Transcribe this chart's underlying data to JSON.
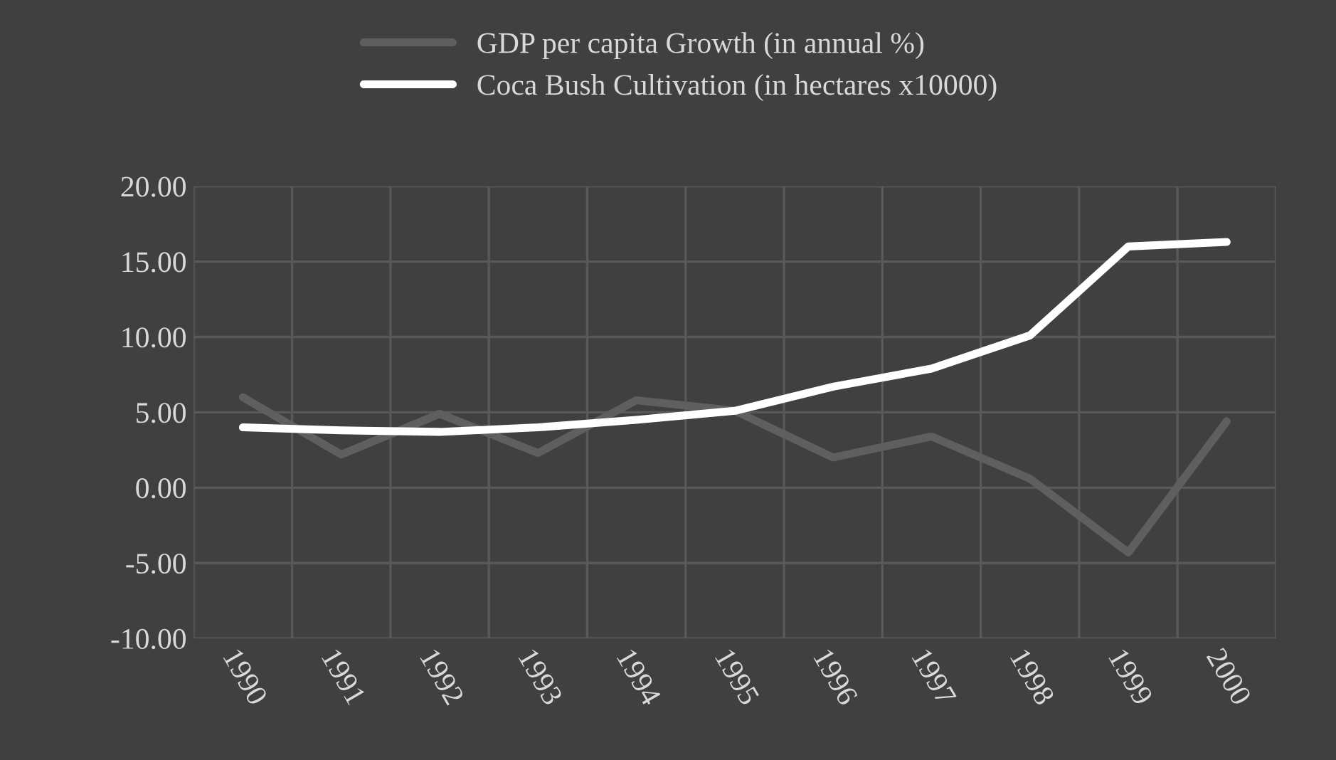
{
  "chart_data": {
    "type": "line",
    "categories": [
      "1990",
      "1991",
      "1992",
      "1993",
      "1994",
      "1995",
      "1996",
      "1997",
      "1998",
      "1999",
      "2000"
    ],
    "series": [
      {
        "name": "GDP per capita Growth (in annual %)",
        "color": "#5f5f5f",
        "values": [
          6.0,
          2.2,
          4.9,
          2.3,
          5.8,
          5.1,
          2.0,
          3.4,
          0.6,
          -4.3,
          4.4
        ]
      },
      {
        "name": "Coca Bush Cultivation (in hectares x10000)",
        "color": "#ffffff",
        "values": [
          4.0,
          3.8,
          3.7,
          4.0,
          4.5,
          5.1,
          6.7,
          7.9,
          10.1,
          16.0,
          16.3
        ]
      }
    ],
    "ylim": [
      -10,
      20
    ],
    "yticks": [
      {
        "value": -10,
        "label": "-10.00"
      },
      {
        "value": -5,
        "label": "-5.00"
      },
      {
        "value": 0,
        "label": "0.00"
      },
      {
        "value": 5,
        "label": "5.00"
      },
      {
        "value": 10,
        "label": "10.00"
      },
      {
        "value": 15,
        "label": "15.00"
      },
      {
        "value": 20,
        "label": "20.00"
      }
    ],
    "grid": true,
    "legend": "top",
    "line_style": "solid"
  }
}
